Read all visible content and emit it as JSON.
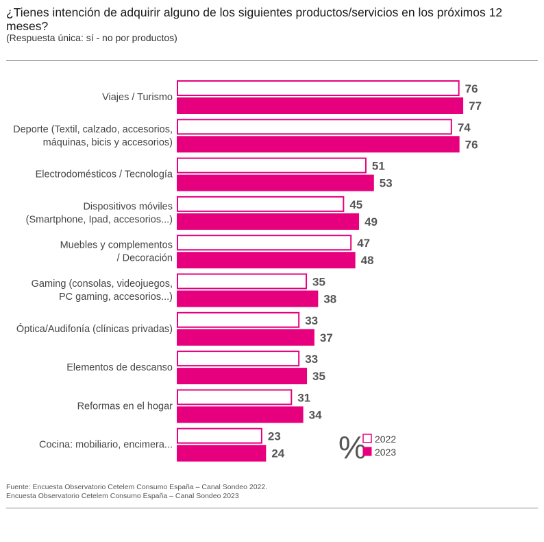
{
  "chart_data": {
    "type": "bar",
    "orientation": "horizontal",
    "title": "¿Tienes intención de adquirir alguno de los siguientes productos/servicios en los próximos 12 meses?",
    "subtitle": "(Respuesta única: sí - no por productos)",
    "unit_symbol": "%",
    "categories": [
      [
        "Viajes / Turismo"
      ],
      [
        "Deporte (Textil, calzado, accesorios,",
        "máquinas, bicis y accesorios)"
      ],
      [
        "Electrodomésticos / Tecnología"
      ],
      [
        "Dispositivos móviles",
        "(Smartphone, Ipad, accesorios...)"
      ],
      [
        "Muebles y complementos",
        "/ Decoración"
      ],
      [
        "Gaming (consolas, videojuegos,",
        "PC gaming, accesorios...)"
      ],
      [
        "Óptica/Audifonía (clínicas privadas)"
      ],
      [
        "Elementos de descanso"
      ],
      [
        "Reformas en el hogar"
      ],
      [
        "Cocina: mobiliario, encimera..."
      ]
    ],
    "series": [
      {
        "name": "2022",
        "values": [
          76,
          74,
          51,
          45,
          47,
          35,
          33,
          33,
          31,
          23
        ],
        "style": "outline",
        "color": "#e6007e"
      },
      {
        "name": "2023",
        "values": [
          77,
          76,
          53,
          49,
          48,
          38,
          37,
          35,
          34,
          24
        ],
        "style": "filled",
        "color": "#e6007e"
      }
    ],
    "xlim": [
      0,
      100
    ],
    "grid": false,
    "legend": "bottom-right"
  },
  "footer": {
    "source_1": "Fuente: Encuesta Observatorio Cetelem Consumo España – Canal Sondeo 2022.",
    "source_2": "Encuesta Observatorio Cetelem Consumo España – Canal Sondeo 2023"
  }
}
